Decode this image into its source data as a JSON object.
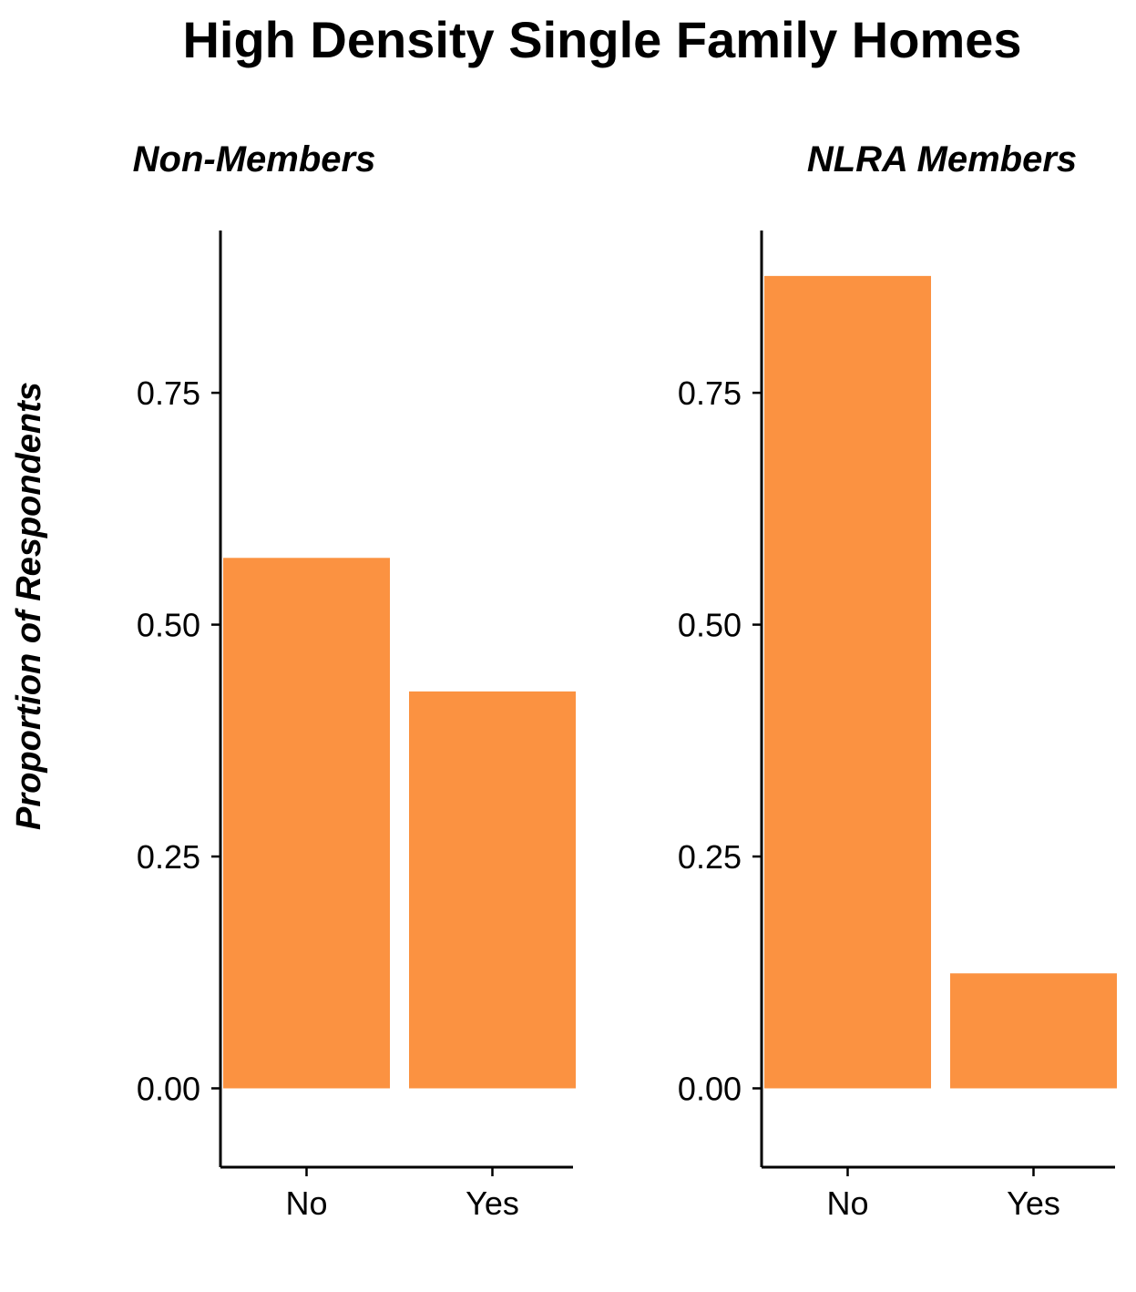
{
  "chart_data": {
    "type": "bar",
    "title": "High Density Single Family Homes",
    "ylabel": "Proportion of Respondents",
    "xlabel": "",
    "ylim": [
      -0.085,
      0.925
    ],
    "yticks": [
      "0.00",
      "0.25",
      "0.50",
      "0.75"
    ],
    "grid": false,
    "bar_color": "#FB9241",
    "panels": [
      {
        "title": "Non-Members",
        "categories": [
          "No",
          "Yes"
        ],
        "values": [
          0.572,
          0.428
        ]
      },
      {
        "title": "NLRA Members",
        "categories": [
          "No",
          "Yes"
        ],
        "values": [
          0.876,
          0.124
        ]
      }
    ]
  }
}
